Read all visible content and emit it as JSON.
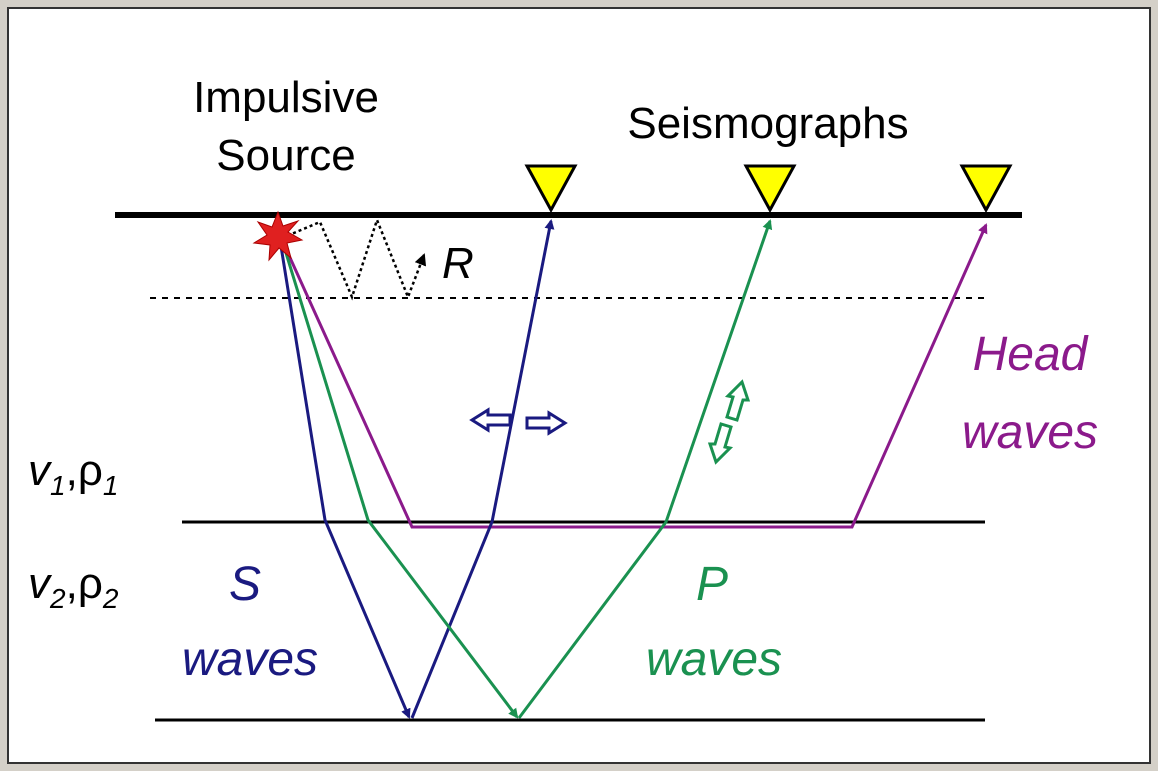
{
  "source": {
    "line1": "Impulsive",
    "line2": "Source"
  },
  "seismographs": "Seismographs",
  "rayleigh": "R",
  "head_waves": {
    "line1": "Head",
    "line2": "waves"
  },
  "s_waves": {
    "line1": "S",
    "line2": "waves"
  },
  "p_waves": {
    "line1": "P",
    "line2": "waves"
  },
  "layer1": {
    "velocity": "v",
    "velocity_sub": "1",
    "separator": ",",
    "density": "ρ",
    "density_sub": "1"
  },
  "layer2": {
    "velocity": "v",
    "velocity_sub": "2",
    "separator": ",",
    "density": "ρ",
    "density_sub": "2"
  }
}
